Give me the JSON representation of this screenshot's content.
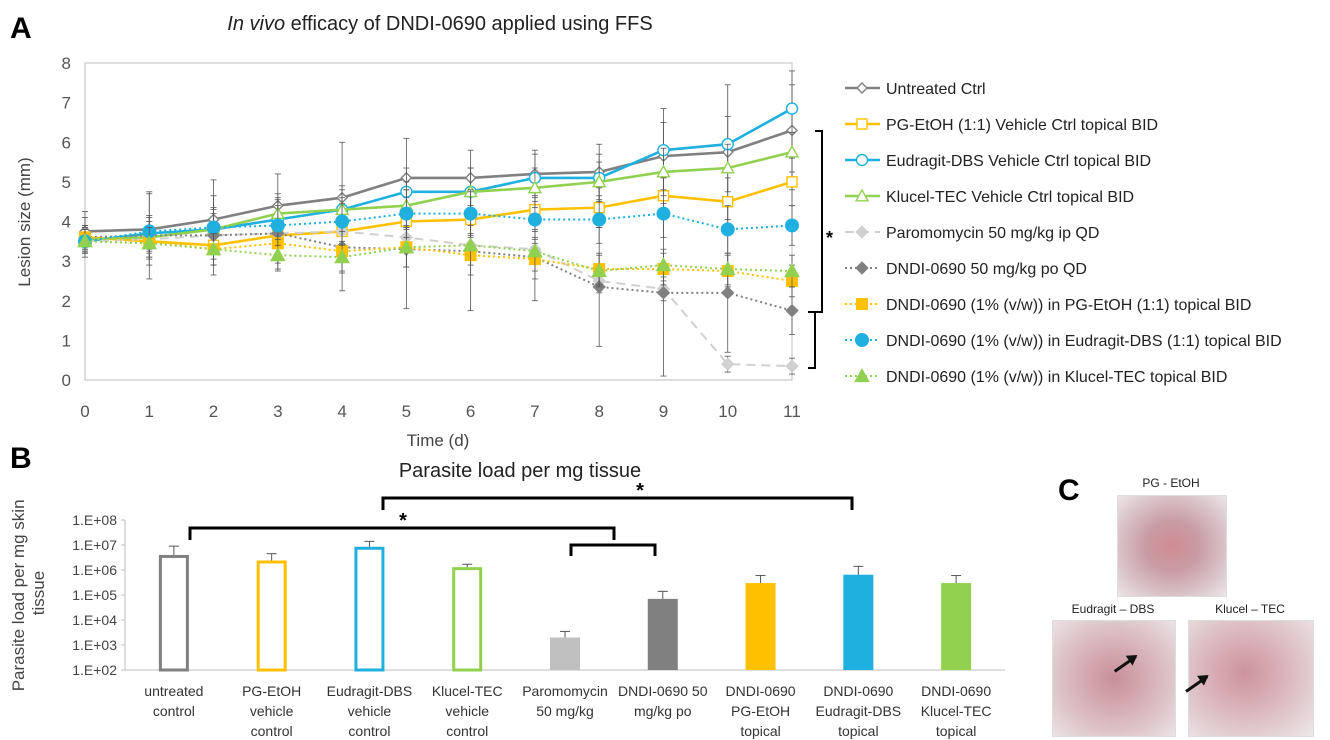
{
  "panel_labels": {
    "a": "A",
    "b": "B",
    "c": "C"
  },
  "significance_mark": "*",
  "chart_data": [
    {
      "type": "line",
      "title_italic": "In vivo",
      "title_rest": " efficacy of DNDI-0690 applied using FFS",
      "xlabel": "Time (d)",
      "ylabel": "Lesion size (mm)",
      "xlim": [
        0,
        11
      ],
      "ylim": [
        0,
        8
      ],
      "x": [
        0,
        1,
        2,
        3,
        4,
        5,
        6,
        7,
        8,
        9,
        10,
        11
      ],
      "yticks": [
        0,
        1,
        2,
        3,
        4,
        5,
        6,
        7,
        8
      ],
      "grid": false,
      "legend": "right",
      "series": [
        {
          "name": "Untreated Ctrl",
          "color": "#808080",
          "dash": "solid",
          "marker": "diamond-open",
          "values": [
            3.75,
            3.8,
            4.05,
            4.4,
            4.6,
            5.1,
            5.1,
            5.2,
            5.25,
            5.65,
            5.75,
            6.3
          ],
          "errors": [
            0.5,
            0.9,
            1.0,
            0.8,
            1.4,
            1.0,
            0.7,
            0.6,
            0.7,
            1.2,
            1.7,
            1.5
          ]
        },
        {
          "name": "PG-EtOH (1:1) Vehicle Ctrl topical BID",
          "color": "#FFC000",
          "dash": "solid",
          "marker": "square-open",
          "values": [
            3.6,
            3.5,
            3.4,
            3.65,
            3.75,
            4.0,
            4.05,
            4.3,
            4.35,
            4.65,
            4.5,
            5.0
          ],
          "errors": [
            0.3,
            0.4,
            0.5,
            0.5,
            0.5,
            0.6,
            0.6,
            0.5,
            0.5,
            0.6,
            0.6,
            0.6
          ]
        },
        {
          "name": "Eudragit-DBS Vehicle Ctrl topical BID",
          "color": "#1FB0E0",
          "dash": "solid",
          "marker": "circle-open",
          "values": [
            3.5,
            3.7,
            3.8,
            4.05,
            4.3,
            4.75,
            4.75,
            5.1,
            5.1,
            5.8,
            5.95,
            6.85
          ],
          "errors": [
            0.3,
            0.4,
            0.5,
            0.5,
            0.6,
            0.6,
            0.6,
            0.6,
            0.6,
            0.7,
            0.7,
            0.6
          ]
        },
        {
          "name": "Klucel-TEC Vehicle Ctrl topical BID",
          "color": "#92D050",
          "dash": "solid",
          "marker": "triangle-open",
          "values": [
            3.55,
            3.6,
            3.8,
            4.2,
            4.3,
            4.4,
            4.75,
            4.85,
            5.0,
            5.25,
            5.35,
            5.75
          ],
          "errors": [
            0.3,
            0.4,
            0.4,
            0.5,
            0.5,
            0.6,
            0.6,
            0.5,
            0.5,
            0.6,
            0.6,
            0.5
          ]
        },
        {
          "name": "Paromomycin 50 mg/kg ip QD",
          "color": "#D0D0D0",
          "dash": "dashed",
          "marker": "diamond",
          "values": [
            3.5,
            3.55,
            3.65,
            3.7,
            3.75,
            3.6,
            3.4,
            3.3,
            2.5,
            2.3,
            0.4,
            0.35
          ],
          "errors": [
            0.3,
            0.3,
            0.3,
            0.3,
            0.3,
            0.3,
            0.3,
            0.3,
            0.3,
            0.3,
            0.2,
            0.2
          ]
        },
        {
          "name": "DNDI-0690 50 mg/kg po QD",
          "color": "#808080",
          "dash": "dotted",
          "marker": "diamond",
          "values": [
            3.6,
            3.65,
            3.65,
            3.7,
            3.35,
            3.3,
            3.25,
            3.1,
            2.35,
            2.2,
            2.2,
            1.75
          ],
          "errors": [
            0.5,
            1.1,
            1.0,
            0.9,
            1.1,
            1.5,
            1.5,
            1.1,
            1.5,
            2.1,
            1.5,
            0.6
          ]
        },
        {
          "name": "DNDI-0690 (1% (v/w)) in PG-EtOH (1:1) topical BID",
          "color": "#FFC000",
          "dash": "dotted",
          "marker": "square",
          "values": [
            3.6,
            3.5,
            3.3,
            3.45,
            3.25,
            3.35,
            3.15,
            3.05,
            2.8,
            2.8,
            2.75,
            2.5
          ],
          "errors": [
            0.3,
            0.4,
            0.4,
            0.5,
            0.5,
            0.5,
            0.5,
            0.5,
            0.4,
            0.4,
            0.4,
            0.4
          ]
        },
        {
          "name": "DNDI-0690 (1% (v/w)) in Eudragit-DBS (1:1) topical BID",
          "color": "#1FB0E0",
          "dash": "dotted",
          "marker": "circle",
          "values": [
            3.5,
            3.75,
            3.85,
            3.9,
            4.0,
            4.2,
            4.2,
            4.05,
            4.05,
            4.2,
            3.8,
            3.9
          ],
          "errors": [
            0.3,
            0.4,
            0.5,
            0.5,
            0.6,
            0.6,
            0.6,
            0.6,
            0.6,
            0.6,
            0.6,
            0.5
          ]
        },
        {
          "name": "DNDI-0690 (1% (v/w)) in Klucel-TEC topical BID",
          "color": "#92D050",
          "dash": "dotted",
          "marker": "triangle",
          "values": [
            3.5,
            3.45,
            3.3,
            3.15,
            3.1,
            3.35,
            3.4,
            3.25,
            2.75,
            2.9,
            2.8,
            2.75
          ],
          "errors": [
            0.3,
            0.4,
            0.4,
            0.4,
            0.4,
            0.5,
            0.5,
            0.5,
            0.4,
            0.4,
            0.4,
            0.4
          ]
        }
      ]
    },
    {
      "type": "bar",
      "title": "Parasite load per mg tissue",
      "ylabel_lines": [
        "Parasite load per mg skin",
        "tissue"
      ],
      "yscale": "log",
      "ylim": [
        100,
        100000000
      ],
      "ytick_labels": [
        "1.E+02",
        "1.E+03",
        "1.E+04",
        "1.E+05",
        "1.E+06",
        "1.E+07",
        "1.E+08"
      ],
      "grid": false,
      "categories": [
        [
          "untreated",
          "control"
        ],
        [
          "PG-EtOH",
          "vehicle",
          "control"
        ],
        [
          "Eudragit-DBS",
          "vehicle",
          "control"
        ],
        [
          "Klucel-TEC",
          "vehicle",
          "control"
        ],
        [
          "Paromomycin",
          "50 mg/kg"
        ],
        [
          "DNDI-0690 50",
          "mg/kg po"
        ],
        [
          "DNDI-0690",
          "PG-EtOH",
          "topical"
        ],
        [
          "DNDI-0690",
          "Eudragit-DBS",
          "topical"
        ],
        [
          "DNDI-0690",
          "Klucel-TEC",
          "topical"
        ]
      ],
      "values": [
        4000000,
        2400000,
        8500000,
        1300000,
        2000,
        70000,
        300000,
        650000,
        300000
      ],
      "error_upper": [
        9000000,
        4500000,
        14000000,
        1700000,
        3500,
        140000,
        600000,
        1400000,
        600000
      ],
      "colors": [
        "#808080",
        "#FFC000",
        "#1FB0E0",
        "#92D050",
        "#C0C0C0",
        "#808080",
        "#FFC000",
        "#1FB0E0",
        "#92D050"
      ],
      "filled": [
        false,
        false,
        false,
        false,
        true,
        true,
        true,
        true,
        true
      ]
    }
  ],
  "photos": [
    {
      "label": "PG - EtOH"
    },
    {
      "label": "Eudragit – DBS"
    },
    {
      "label": "Klucel – TEC"
    }
  ]
}
